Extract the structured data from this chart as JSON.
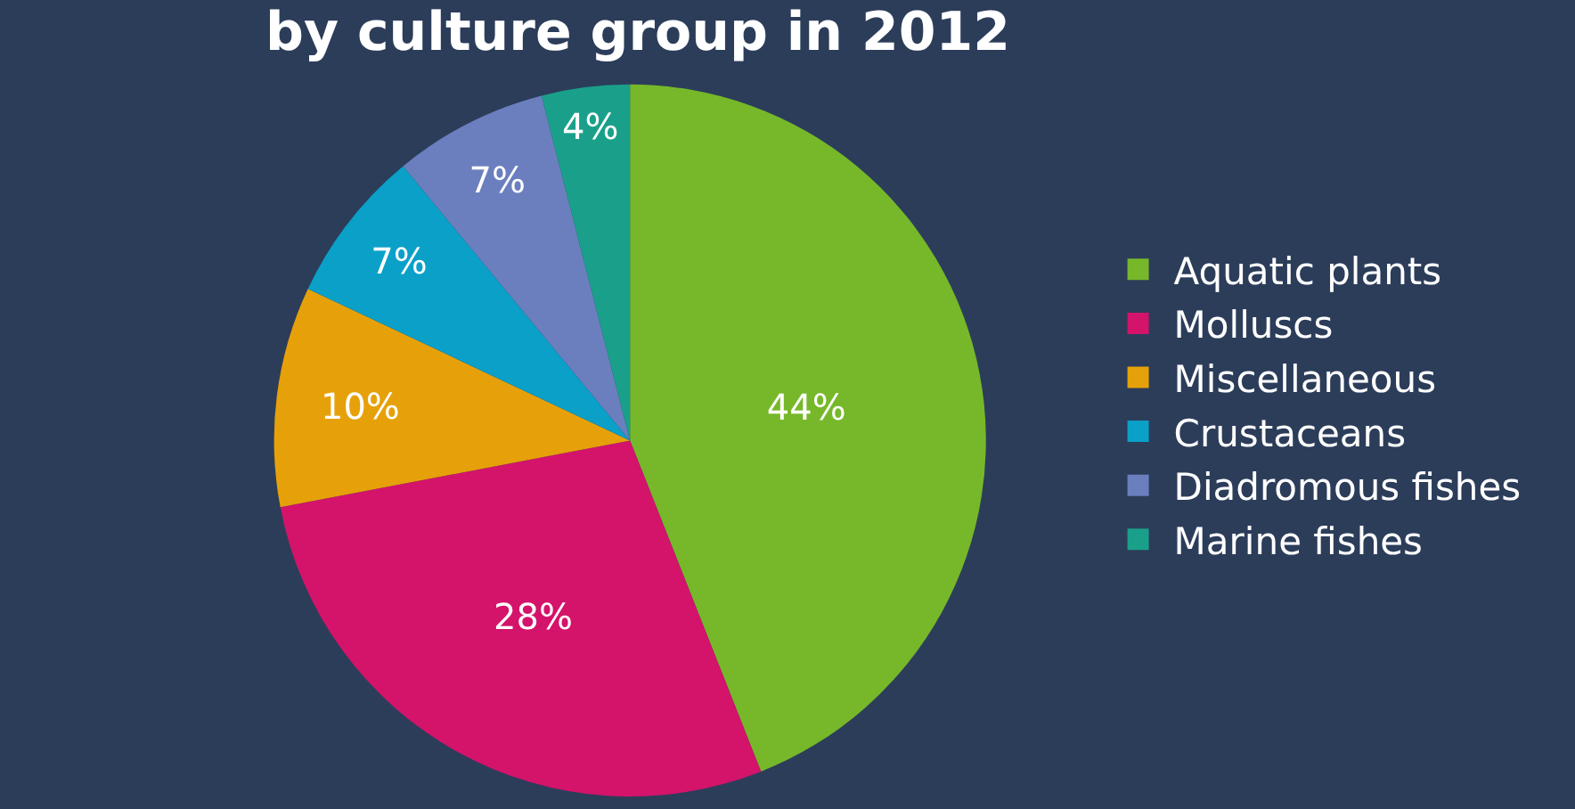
{
  "chart_data": {
    "type": "pie",
    "title": "by culture group in 2012",
    "categories": [
      "Aquatic plants",
      "Molluscs",
      "Miscellaneous",
      "Crustaceans",
      "Diadromous fishes",
      "Marine fishes"
    ],
    "values": [
      44,
      28,
      10,
      7,
      7,
      4
    ],
    "value_labels": [
      "44%",
      "28%",
      "10%",
      "7%",
      "7%",
      "4%"
    ],
    "colors": [
      "#76b82a",
      "#d4136b",
      "#e6a10a",
      "#0aa0c8",
      "#6b7fbf",
      "#1aa08a"
    ],
    "legend": "right"
  }
}
